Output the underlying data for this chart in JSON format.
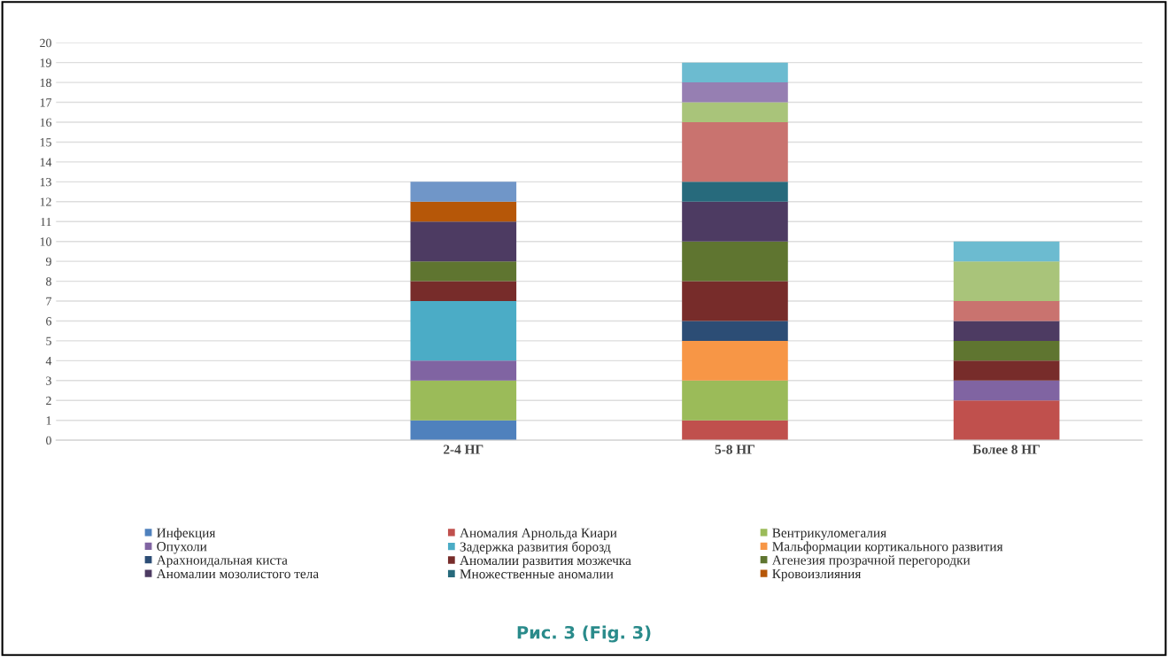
{
  "chart_data": {
    "type": "bar",
    "stacked": true,
    "categories": [
      null,
      "2-4 НГ",
      "5-8 НГ",
      "Более 8 НГ"
    ],
    "ylim": [
      0,
      20
    ],
    "yticks": [
      0,
      1,
      2,
      3,
      4,
      5,
      6,
      7,
      8,
      9,
      10,
      11,
      12,
      13,
      14,
      15,
      16,
      17,
      18,
      19,
      20
    ],
    "grid": "y",
    "legend": "bottom",
    "annotations": [
      "Рис. 3 (Fig. 3)"
    ],
    "series": [
      {
        "name": "Инфекция",
        "color": "#4f81bd",
        "values": [
          null,
          1,
          null,
          null
        ]
      },
      {
        "name": "Аномалия Арнольда Киари",
        "color": "#c0504d",
        "values": [
          null,
          null,
          1,
          2
        ]
      },
      {
        "name": "Вентрикуломегалия",
        "color": "#9bbb59",
        "values": [
          null,
          2,
          2,
          null
        ]
      },
      {
        "name": "Опухоли",
        "color": "#8064a2",
        "values": [
          null,
          1,
          null,
          1
        ]
      },
      {
        "name": "Задержка развития борозд",
        "color": "#4bacc6",
        "values": [
          null,
          3,
          null,
          null
        ]
      },
      {
        "name": "Мальформации кортикального развития",
        "color": "#f79646",
        "values": [
          null,
          null,
          2,
          null
        ]
      },
      {
        "name": "Арахноидальная киста",
        "color": "#2c4d75",
        "values": [
          null,
          null,
          1,
          null
        ]
      },
      {
        "name": "Аномалии развития мозжечка",
        "color": "#772c2a",
        "values": [
          null,
          1,
          2,
          1
        ]
      },
      {
        "name": "Агенезия прозрачной перегородки",
        "color": "#5f7530",
        "values": [
          null,
          1,
          2,
          1
        ]
      },
      {
        "name": "Аномалии мозолистого тела",
        "color": "#4d3b62",
        "values": [
          null,
          2,
          2,
          1
        ]
      },
      {
        "name": "Множественные аномалии",
        "color": "#276a7c",
        "values": [
          null,
          null,
          1,
          null
        ]
      },
      {
        "name": "Кровоизлияния",
        "color": "#b65708",
        "values": [
          null,
          1,
          null,
          null
        ]
      },
      {
        "color": "#7096c8",
        "values": [
          null,
          1,
          null,
          null
        ]
      },
      {
        "color": "#c9736f",
        "values": [
          null,
          null,
          3,
          1
        ]
      },
      {
        "color": "#a9c47a",
        "values": [
          null,
          null,
          1,
          2
        ]
      },
      {
        "color": "#967fb2",
        "values": [
          null,
          null,
          1,
          null
        ]
      },
      {
        "color": "#6cbbd0",
        "values": [
          null,
          null,
          1,
          1
        ]
      }
    ]
  }
}
